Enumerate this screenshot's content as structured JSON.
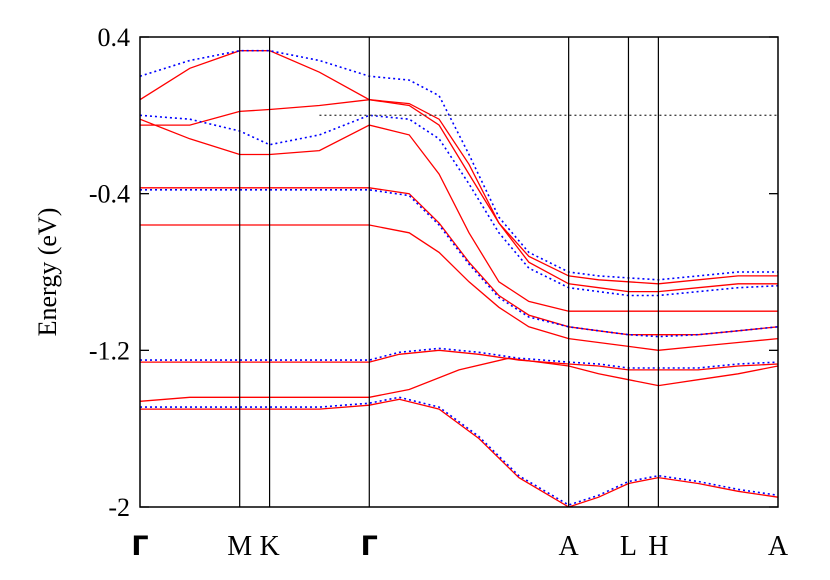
{
  "chart_data": {
    "type": "line",
    "title": "",
    "xlabel": "",
    "ylabel": "Energy (eV)",
    "ylim": [
      -2.0,
      0.4
    ],
    "yticks": [
      "0.4",
      "-0.4",
      "-1.2",
      "-2"
    ],
    "ytick_values": [
      0.4,
      -0.4,
      -1.2,
      -2.0
    ],
    "kpoints": [
      {
        "label": "Γ",
        "x": 0
      },
      {
        "label": "M",
        "x": 1
      },
      {
        "label": "K",
        "x": 1.3
      },
      {
        "label": "Γ",
        "x": 2.3
      },
      {
        "label": "A",
        "x": 4.3
      },
      {
        "label": "L",
        "x": 4.9
      },
      {
        "label": "H",
        "x": 5.2
      },
      {
        "label": "A",
        "x": 6.4
      }
    ],
    "xlim": [
      0,
      6.4
    ],
    "fermi_level": 0.0,
    "grid": false,
    "legend": "none",
    "colors": {
      "solid": "#ff0000",
      "dotted": "#0000ff",
      "fermi": "#444444",
      "frame": "#000000"
    },
    "series": [
      {
        "style": "solid",
        "x": [
          0,
          0.5,
          1,
          1.3,
          1.8,
          2.3,
          2.7,
          3.0,
          3.3,
          3.6,
          3.9,
          4.3,
          4.6,
          4.9,
          5.2,
          5.6,
          6.0,
          6.4
        ],
        "y": [
          0.08,
          0.24,
          0.33,
          0.33,
          0.22,
          0.08,
          0.06,
          -0.02,
          -0.25,
          -0.55,
          -0.72,
          -0.82,
          -0.84,
          -0.85,
          -0.86,
          -0.84,
          -0.82,
          -0.82
        ]
      },
      {
        "style": "solid",
        "x": [
          0,
          0.5,
          1,
          1.3,
          1.8,
          2.3,
          2.7,
          3.0,
          3.3,
          3.6,
          3.9,
          4.3,
          4.6,
          4.9,
          5.2,
          5.6,
          6.0,
          6.4
        ],
        "y": [
          -0.05,
          -0.05,
          0.02,
          0.03,
          0.05,
          0.08,
          0.05,
          -0.05,
          -0.3,
          -0.55,
          -0.75,
          -0.86,
          -0.88,
          -0.9,
          -0.9,
          -0.88,
          -0.86,
          -0.86
        ]
      },
      {
        "style": "solid",
        "x": [
          0,
          0.5,
          1,
          1.3,
          1.8,
          2.3,
          2.7,
          3.0,
          3.3,
          3.6,
          3.9,
          4.3,
          4.6,
          4.9,
          5.2,
          5.6,
          6.0,
          6.4
        ],
        "y": [
          -0.02,
          -0.12,
          -0.2,
          -0.2,
          -0.18,
          -0.05,
          -0.1,
          -0.3,
          -0.6,
          -0.85,
          -0.95,
          -1.0,
          -1.0,
          -1.0,
          -1.0,
          -1.0,
          -1.0,
          -1.0
        ]
      },
      {
        "style": "solid",
        "x": [
          0,
          0.5,
          1,
          1.3,
          1.8,
          2.3,
          2.7,
          3.0,
          3.3,
          3.6,
          3.9,
          4.3,
          4.6,
          4.9,
          5.2,
          5.6,
          6.0,
          6.4
        ],
        "y": [
          -0.37,
          -0.37,
          -0.37,
          -0.37,
          -0.37,
          -0.37,
          -0.4,
          -0.55,
          -0.75,
          -0.92,
          -1.02,
          -1.08,
          -1.1,
          -1.12,
          -1.12,
          -1.12,
          -1.1,
          -1.08
        ]
      },
      {
        "style": "solid",
        "x": [
          0,
          0.5,
          1,
          1.3,
          1.8,
          2.3,
          2.7,
          3.0,
          3.3,
          3.6,
          3.9,
          4.3,
          4.6,
          4.9,
          5.2,
          5.6,
          6.0,
          6.4
        ],
        "y": [
          -0.56,
          -0.56,
          -0.56,
          -0.56,
          -0.56,
          -0.56,
          -0.6,
          -0.7,
          -0.85,
          -0.98,
          -1.08,
          -1.14,
          -1.16,
          -1.18,
          -1.2,
          -1.18,
          -1.16,
          -1.14
        ]
      },
      {
        "style": "solid",
        "x": [
          0,
          0.5,
          1,
          1.3,
          1.8,
          2.3,
          2.6,
          3.0,
          3.4,
          3.8,
          4.3,
          4.6,
          4.9,
          5.2,
          5.6,
          6.0,
          6.4
        ],
        "y": [
          -1.26,
          -1.26,
          -1.26,
          -1.26,
          -1.26,
          -1.26,
          -1.22,
          -1.2,
          -1.22,
          -1.25,
          -1.27,
          -1.28,
          -1.3,
          -1.3,
          -1.3,
          -1.28,
          -1.27
        ]
      },
      {
        "style": "solid",
        "x": [
          0,
          0.5,
          1,
          1.3,
          1.8,
          2.3,
          2.7,
          3.2,
          3.7,
          4.3,
          4.6,
          4.9,
          5.2,
          5.6,
          6.0,
          6.4
        ],
        "y": [
          -1.46,
          -1.44,
          -1.44,
          -1.44,
          -1.44,
          -1.44,
          -1.4,
          -1.3,
          -1.24,
          -1.28,
          -1.32,
          -1.35,
          -1.38,
          -1.35,
          -1.32,
          -1.28
        ]
      },
      {
        "style": "solid",
        "x": [
          0,
          0.5,
          1,
          1.3,
          1.8,
          2.3,
          2.6,
          3.0,
          3.4,
          3.8,
          4.3,
          4.6,
          4.9,
          5.2,
          5.6,
          6.0,
          6.4
        ],
        "y": [
          -1.5,
          -1.5,
          -1.5,
          -1.5,
          -1.5,
          -1.48,
          -1.45,
          -1.5,
          -1.65,
          -1.85,
          -2.0,
          -1.95,
          -1.88,
          -1.85,
          -1.88,
          -1.92,
          -1.95
        ]
      },
      {
        "style": "dotted",
        "x": [
          0,
          0.5,
          1,
          1.3,
          1.8,
          2.3,
          2.7,
          3.0,
          3.3,
          3.6,
          3.9,
          4.3,
          4.6,
          4.9,
          5.2,
          5.6,
          6.0,
          6.4
        ],
        "y": [
          0.2,
          0.28,
          0.33,
          0.33,
          0.28,
          0.2,
          0.18,
          0.1,
          -0.2,
          -0.52,
          -0.7,
          -0.8,
          -0.82,
          -0.83,
          -0.84,
          -0.82,
          -0.8,
          -0.8
        ]
      },
      {
        "style": "dotted",
        "x": [
          0,
          0.5,
          1,
          1.3,
          1.8,
          2.3,
          2.7,
          3.0,
          3.3,
          3.6,
          3.9,
          4.3,
          4.6,
          4.9,
          5.2,
          5.6,
          6.0,
          6.4
        ],
        "y": [
          0.0,
          -0.02,
          -0.08,
          -0.15,
          -0.1,
          -0.0,
          -0.02,
          -0.12,
          -0.35,
          -0.6,
          -0.78,
          -0.88,
          -0.9,
          -0.92,
          -0.92,
          -0.9,
          -0.88,
          -0.87
        ]
      },
      {
        "style": "dotted",
        "x": [
          0,
          0.5,
          1,
          1.3,
          1.8,
          2.3,
          2.7,
          3.0,
          3.3,
          3.6,
          3.9,
          4.3,
          4.6,
          4.9,
          5.2,
          5.6,
          6.0,
          6.4
        ],
        "y": [
          -0.38,
          -0.38,
          -0.38,
          -0.38,
          -0.38,
          -0.38,
          -0.41,
          -0.56,
          -0.76,
          -0.93,
          -1.03,
          -1.08,
          -1.1,
          -1.12,
          -1.13,
          -1.12,
          -1.1,
          -1.08
        ]
      },
      {
        "style": "dotted",
        "x": [
          0,
          0.5,
          1,
          1.3,
          1.8,
          2.3,
          2.6,
          3.0,
          3.4,
          3.8,
          4.3,
          4.6,
          4.9,
          5.2,
          5.6,
          6.0,
          6.4
        ],
        "y": [
          -1.25,
          -1.25,
          -1.25,
          -1.25,
          -1.25,
          -1.25,
          -1.21,
          -1.19,
          -1.21,
          -1.24,
          -1.26,
          -1.27,
          -1.29,
          -1.29,
          -1.29,
          -1.27,
          -1.26
        ]
      },
      {
        "style": "dotted",
        "x": [
          0,
          0.5,
          1,
          1.3,
          1.8,
          2.3,
          2.6,
          3.0,
          3.4,
          3.8,
          4.3,
          4.6,
          4.9,
          5.2,
          5.6,
          6.0,
          6.4
        ],
        "y": [
          -1.49,
          -1.49,
          -1.49,
          -1.49,
          -1.49,
          -1.47,
          -1.44,
          -1.49,
          -1.64,
          -1.84,
          -1.99,
          -1.94,
          -1.87,
          -1.84,
          -1.87,
          -1.91,
          -1.94
        ]
      }
    ]
  }
}
